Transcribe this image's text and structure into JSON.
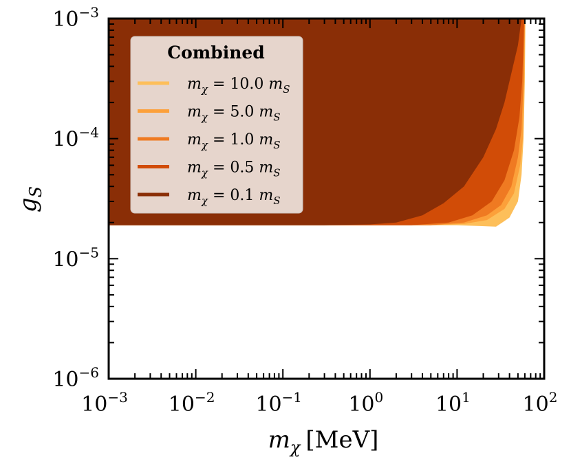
{
  "chart_data": {
    "type": "area",
    "x_scale": "log",
    "y_scale": "log",
    "xlim": [
      0.001,
      100
    ],
    "ylim": [
      1e-06,
      0.001
    ],
    "x_ticks": [
      {
        "base": "10",
        "exp": "−3",
        "value": 0.001
      },
      {
        "base": "10",
        "exp": "−2",
        "value": 0.01
      },
      {
        "base": "10",
        "exp": "−1",
        "value": 0.1
      },
      {
        "base": "10",
        "exp": "0",
        "value": 1
      },
      {
        "base": "10",
        "exp": "1",
        "value": 10
      },
      {
        "base": "10",
        "exp": "2",
        "value": 100
      }
    ],
    "y_ticks": [
      {
        "base": "10",
        "exp": "−6",
        "value": 1e-06
      },
      {
        "base": "10",
        "exp": "−5",
        "value": 1e-05
      },
      {
        "base": "10",
        "exp": "−4",
        "value": 0.0001
      },
      {
        "base": "10",
        "exp": "−3",
        "value": 0.001
      }
    ],
    "xlabel": {
      "var": "m",
      "sub": "χ",
      "unit": "[MeV]"
    },
    "ylabel": {
      "var": "g",
      "sub": "S"
    },
    "legend": {
      "title": "Combined",
      "position": "top-left"
    },
    "series": [
      {
        "name": "m_χ = 10.0 m_S",
        "var": "m",
        "sub": "χ",
        "eq": "= 10.0",
        "unit_var": "m",
        "unit_sub": "S",
        "color": "#fdbf5a",
        "lower_boundary": [
          [
            0.001,
            1.9e-05
          ],
          [
            10,
            1.9e-05
          ],
          [
            28,
            1.85e-05
          ],
          [
            33,
            2e-05
          ],
          [
            40,
            2.2e-05
          ],
          [
            50,
            3e-05
          ],
          [
            55,
            5e-05
          ],
          [
            58,
            0.0001
          ],
          [
            60,
            0.0003
          ],
          [
            61,
            0.001
          ]
        ]
      },
      {
        "name": "m_χ = 5.0 m_S",
        "var": "m",
        "sub": "χ",
        "eq": "= 5.0",
        "unit_var": "m",
        "unit_sub": "S",
        "color": "#fca03a",
        "lower_boundary": [
          [
            0.001,
            1.9e-05
          ],
          [
            5,
            1.9e-05
          ],
          [
            12,
            1.95e-05
          ],
          [
            22,
            2.1e-05
          ],
          [
            35,
            2.6e-05
          ],
          [
            45,
            3.5e-05
          ],
          [
            53,
            6e-05
          ],
          [
            57,
            0.0001
          ],
          [
            59,
            0.0003
          ],
          [
            60,
            0.001
          ]
        ]
      },
      {
        "name": "m_χ = 1.0 m_S",
        "var": "m",
        "sub": "χ",
        "eq": "= 1.0",
        "unit_var": "m",
        "unit_sub": "S",
        "color": "#ef7a22",
        "lower_boundary": [
          [
            0.001,
            1.9e-05
          ],
          [
            5,
            1.9e-05
          ],
          [
            12,
            2e-05
          ],
          [
            22,
            2.3e-05
          ],
          [
            32,
            2.8e-05
          ],
          [
            42,
            4e-05
          ],
          [
            50,
            7e-05
          ],
          [
            55,
            0.00012
          ],
          [
            58,
            0.0003
          ],
          [
            60,
            0.001
          ]
        ]
      },
      {
        "name": "m_χ = 0.5 m_S",
        "var": "m",
        "sub": "χ",
        "eq": "= 0.5",
        "unit_var": "m",
        "unit_sub": "S",
        "color": "#d14c07",
        "lower_boundary": [
          [
            0.001,
            1.9e-05
          ],
          [
            3,
            1.9e-05
          ],
          [
            8,
            2e-05
          ],
          [
            15,
            2.3e-05
          ],
          [
            25,
            3e-05
          ],
          [
            35,
            4.5e-05
          ],
          [
            45,
            8e-05
          ],
          [
            52,
            0.00015
          ],
          [
            56,
            0.0003
          ],
          [
            59,
            0.001
          ]
        ]
      },
      {
        "name": "m_χ = 0.1 m_S",
        "var": "m",
        "sub": "χ",
        "eq": "= 0.1",
        "unit_var": "m",
        "unit_sub": "S",
        "color": "#8a2e06",
        "lower_boundary": [
          [
            0.001,
            1.9e-05
          ],
          [
            0.3,
            1.9e-05
          ],
          [
            1,
            1.93e-05
          ],
          [
            2,
            2e-05
          ],
          [
            4,
            2.3e-05
          ],
          [
            7,
            2.9e-05
          ],
          [
            12,
            4e-05
          ],
          [
            20,
            7e-05
          ],
          [
            28,
            0.00012
          ],
          [
            35,
            0.0002
          ],
          [
            42,
            0.00035
          ],
          [
            50,
            0.0006
          ],
          [
            55,
            0.001
          ]
        ]
      }
    ]
  }
}
